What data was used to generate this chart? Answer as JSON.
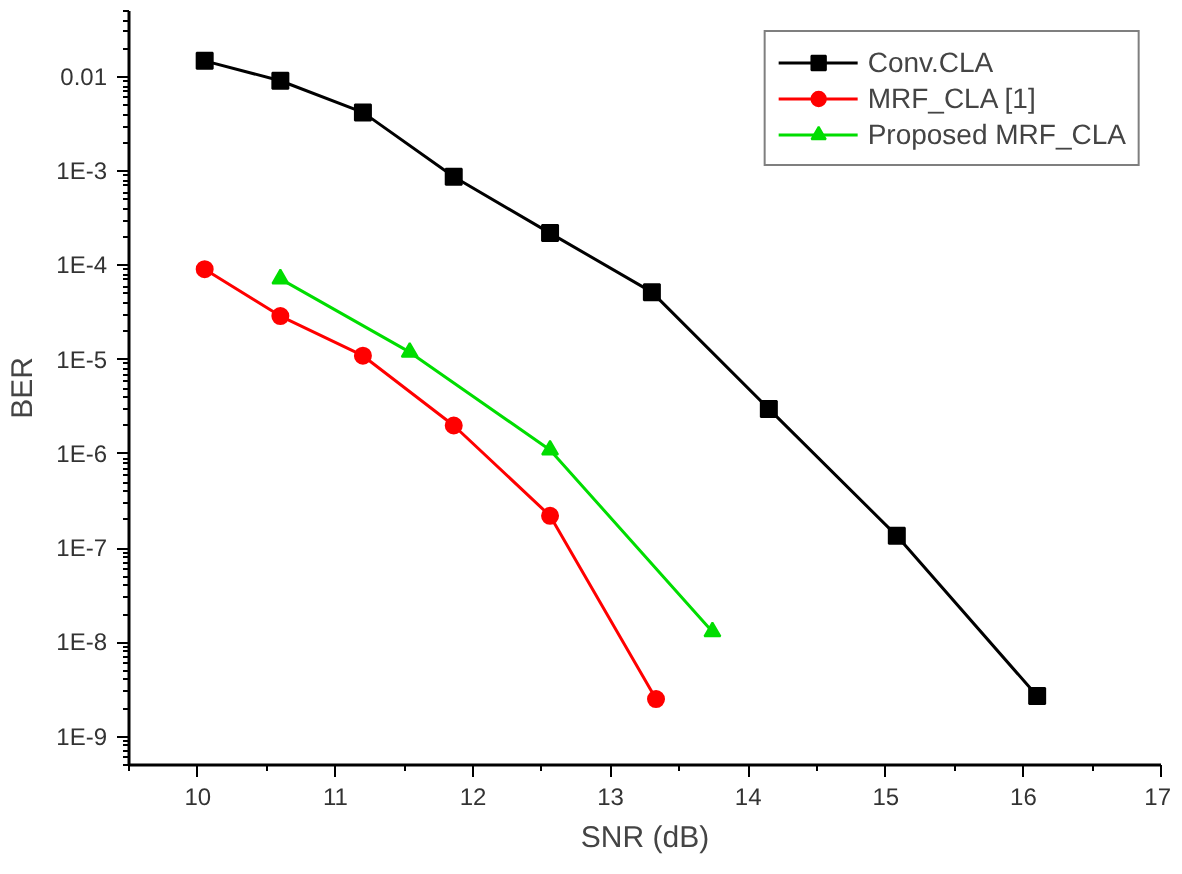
{
  "chart_data": {
    "type": "line",
    "xlabel": "SNR (dB)",
    "ylabel": "BER",
    "log": "y",
    "grid": false,
    "legend": "top right",
    "xlim": [
      9.5,
      17
    ],
    "xticks": [
      10,
      11,
      12,
      13,
      14,
      15,
      16,
      17
    ],
    "ylim": [
      5e-10,
      0.05
    ],
    "yticks": [
      {
        "value": 0.01,
        "label": "0.01"
      },
      {
        "value": 0.001,
        "label": "1E-3"
      },
      {
        "value": 0.0001,
        "label": "1E-4"
      },
      {
        "value": 1e-05,
        "label": "1E-5"
      },
      {
        "value": 1e-06,
        "label": "1E-6"
      },
      {
        "value": 1e-07,
        "label": "1E-7"
      },
      {
        "value": 1e-08,
        "label": "1E-8"
      },
      {
        "value": 1e-09,
        "label": "1E-9"
      }
    ],
    "series": [
      {
        "name": "Conv.CLA",
        "color": "#000000",
        "marker": "square",
        "x": [
          10.05,
          10.6,
          11.2,
          11.86,
          12.56,
          13.3,
          14.15,
          15.08,
          16.1
        ],
        "values": [
          0.0148,
          0.0091,
          0.0042,
          0.00087,
          0.00022,
          5.2e-05,
          3e-06,
          1.35e-07,
          2.7e-09
        ]
      },
      {
        "name": "MRF_CLA [1]",
        "color": "#ff0000",
        "marker": "circle",
        "x": [
          10.05,
          10.6,
          11.2,
          11.86,
          12.56,
          13.33
        ],
        "values": [
          9.1e-05,
          2.9e-05,
          1.1e-05,
          2e-06,
          2.2e-07,
          2.5e-09
        ]
      },
      {
        "name": "Proposed MRF_CLA",
        "color": "#00dd00",
        "marker": "triangle",
        "x": [
          10.6,
          11.54,
          12.56,
          13.74
        ],
        "values": [
          7.2e-05,
          1.2e-05,
          1.1e-06,
          1.3e-08
        ]
      }
    ]
  }
}
